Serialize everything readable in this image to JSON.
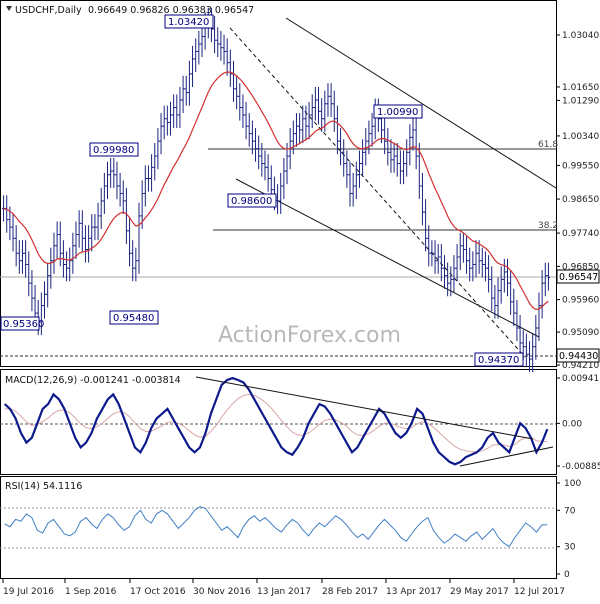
{
  "header": {
    "symbol": "USDCHF,Daily",
    "ohlc": "0.96649 0.96826 0.96383 0.96547"
  },
  "watermark": "ActionForex.com",
  "colors": {
    "price": "#1a237e",
    "ema": "#d32f2f",
    "macd": "#0d1a8c",
    "signal": "#d9a7a7",
    "rsi": "#3f7fc4",
    "trend": "#111111",
    "fib": "#333333",
    "callout_border": "#000080"
  },
  "chart_data": [
    {
      "type": "candlestick",
      "title": "USDCHF,Daily",
      "x_ticks": [
        "19 Jul 2016",
        "1 Sep 2016",
        "17 Oct 2016",
        "30 Nov 2016",
        "13 Jan 2017",
        "28 Feb 2017",
        "13 Apr 2017",
        "29 May 2017",
        "12 Jul 2017"
      ],
      "y_ticks": [
        1.0304,
        1.0165,
        1.0129,
        1.0034,
        0.9955,
        0.9865,
        0.9774,
        0.9685,
        0.9596,
        0.9509,
        0.9421
      ],
      "ylim": [
        0.9421,
        1.0365
      ],
      "last_price": 0.96547,
      "support_label": 0.9443,
      "series": [
        {
          "name": "",
          "close": [
            0.984,
            0.981,
            0.979,
            0.976,
            0.972,
            0.97,
            0.972,
            0.969,
            0.964,
            0.96,
            0.956,
            0.9536,
            0.958,
            0.961,
            0.966,
            0.97,
            0.974,
            0.977,
            0.972,
            0.969,
            0.968,
            0.97,
            0.974,
            0.977,
            0.98,
            0.976,
            0.973,
            0.976,
            0.979,
            0.979,
            0.982,
            0.986,
            0.99,
            0.993,
            0.994,
            0.993,
            0.99,
            0.988,
            0.986,
            0.978,
            0.972,
            0.968,
            0.97,
            0.982,
            0.988,
            0.992,
            0.992,
            0.995,
            0.998,
            1.002,
            1.006,
            1.008,
            1.007,
            1.009,
            1.011,
            1.009,
            1.013,
            1.016,
            1.015,
            1.02,
            1.024,
            1.026,
            1.028,
            1.03,
            1.033,
            1.0342,
            1.032,
            1.029,
            1.028,
            1.027,
            1.026,
            1.023,
            1.02,
            1.016,
            1.014,
            1.011,
            1.009,
            1.006,
            1.004,
            1.002,
            1.0,
            0.998,
            0.996,
            0.995,
            0.992,
            0.989,
            0.987,
            0.986,
            0.99,
            0.994,
            0.998,
            1.002,
            1.004,
            1.006,
            1.005,
            1.008,
            1.006,
            1.009,
            1.011,
            1.013,
            1.01,
            1.008,
            1.012,
            1.014,
            1.012,
            1.008,
            1.002,
            0.999,
            0.996,
            0.993,
            0.988,
            0.99,
            0.993,
            0.996,
            0.999,
            1.002,
            1.004,
            1.006,
            1.0099,
            1.008,
            1.005,
            1.002,
            0.999,
            0.997,
            0.998,
            0.996,
            0.994,
            0.996,
            0.999,
            1.003,
            1.005,
            0.998,
            0.99,
            0.983,
            0.976,
            0.972,
            0.972,
            0.97,
            0.971,
            0.968,
            0.966,
            0.964,
            0.965,
            0.968,
            0.971,
            0.974,
            0.973,
            0.97,
            0.968,
            0.969,
            0.972,
            0.97,
            0.969,
            0.968,
            0.965,
            0.96,
            0.958,
            0.962,
            0.965,
            0.967,
            0.964,
            0.959,
            0.956,
            0.952,
            0.948,
            0.947,
            0.945,
            0.9437,
            0.947,
            0.952,
            0.958,
            0.964,
            0.966,
            0.9655
          ]
        }
      ]
    },
    {
      "type": "line",
      "title": "MACD(12,26,9) -0.001241 -0.003814",
      "y_ticks": [
        0.009411,
        0.0,
        -0.008852
      ],
      "series": [
        {
          "name": "",
          "values": [
            0.004,
            0.003,
            0.001,
            -0.002,
            -0.004,
            -0.003,
            0.0,
            0.003,
            0.004,
            0.006,
            0.005,
            0.003,
            0.0,
            -0.003,
            -0.005,
            -0.004,
            -0.002,
            0.001,
            0.003,
            0.005,
            0.006,
            0.004,
            0.001,
            -0.002,
            -0.005,
            -0.006,
            -0.004,
            -0.001,
            0.001,
            0.002,
            0.003,
            0.001,
            -0.001,
            -0.003,
            -0.005,
            -0.006,
            -0.005,
            -0.002,
            0.002,
            0.005,
            0.008,
            0.009,
            0.0094,
            0.009,
            0.0085,
            0.007,
            0.005,
            0.003,
            0.001,
            -0.001,
            -0.003,
            -0.005,
            -0.006,
            -0.0065,
            -0.005,
            -0.003,
            0.0,
            0.002,
            0.004,
            0.0035,
            0.002,
            0.0,
            -0.002,
            -0.004,
            -0.006,
            -0.005,
            -0.003,
            -0.001,
            0.001,
            0.003,
            0.002,
            0.0,
            -0.002,
            -0.003,
            -0.002,
            0.0,
            0.003,
            0.002,
            -0.001,
            -0.004,
            -0.006,
            -0.007,
            -0.008,
            -0.0085,
            -0.008,
            -0.007,
            -0.0065,
            -0.006,
            -0.005,
            -0.003,
            -0.002,
            -0.004,
            -0.005,
            -0.006,
            -0.003,
            0.0,
            -0.001,
            -0.003,
            -0.006,
            -0.004,
            -0.0012
          ]
        },
        {
          "name": "",
          "values": [
            0.003,
            0.003,
            0.0025,
            0.0015,
            0.0003,
            -0.0004,
            -0.0003,
            0.0004,
            0.0011,
            0.0021,
            0.0027,
            0.0027,
            0.0022,
            0.0011,
            -0.0001,
            -0.0009,
            -0.0011,
            -0.0007,
            0.0,
            0.001,
            0.002,
            0.0024,
            0.0022,
            0.0014,
            0.0001,
            -0.0011,
            -0.0017,
            -0.0016,
            -0.0011,
            -0.0005,
            0.0002,
            0.0003,
            0.0,
            -0.0006,
            -0.0015,
            -0.0024,
            -0.0029,
            -0.0027,
            -0.0017,
            -0.0004,
            0.0013,
            0.0028,
            0.0041,
            0.0051,
            0.0058,
            0.006,
            0.0058,
            0.0052,
            0.0044,
            0.0033,
            0.002,
            0.0006,
            -0.0007,
            -0.0018,
            -0.0024,
            -0.0025,
            -0.002,
            -0.0012,
            -0.0002,
            0.0006,
            0.0009,
            0.0007,
            0.0002,
            -0.0006,
            -0.0017,
            -0.0024,
            -0.0025,
            -0.0022,
            -0.0015,
            -0.0006,
            0.0,
            0.0,
            -0.0004,
            -0.0009,
            -0.0011,
            -0.0009,
            -0.0001,
            0.0003,
            0.0,
            -0.0008,
            -0.0018,
            -0.0029,
            -0.0039,
            -0.0048,
            -0.0054,
            -0.0057,
            -0.0059,
            -0.0059,
            -0.0057,
            -0.0052,
            -0.0045,
            -0.0044,
            -0.0045,
            -0.0048,
            -0.0044,
            -0.0035,
            -0.003,
            -0.003,
            -0.0036,
            -0.0037,
            -0.0038
          ]
        }
      ]
    },
    {
      "type": "line",
      "title": "RSI(14) 54.1116",
      "y_ticks": [
        100,
        70,
        30,
        0
      ],
      "ylim": [
        0,
        100
      ],
      "series": [
        {
          "name": "",
          "values": [
            55,
            52,
            60,
            58,
            66,
            62,
            48,
            45,
            56,
            60,
            52,
            44,
            42,
            46,
            58,
            62,
            55,
            50,
            60,
            66,
            62,
            54,
            48,
            52,
            64,
            70,
            60,
            56,
            66,
            70,
            66,
            58,
            50,
            56,
            62,
            70,
            74,
            72,
            64,
            56,
            48,
            52,
            46,
            40,
            52,
            60,
            64,
            58,
            62,
            56,
            50,
            46,
            54,
            60,
            56,
            48,
            42,
            50,
            56,
            52,
            58,
            64,
            60,
            54,
            46,
            40,
            44,
            38,
            46,
            54,
            60,
            54,
            48,
            40,
            36,
            44,
            52,
            58,
            62,
            48,
            40,
            34,
            38,
            44,
            40,
            36,
            42,
            46,
            38,
            44,
            50,
            40,
            34,
            30,
            40,
            48,
            56,
            52,
            46,
            54,
            54
          ]
        }
      ]
    }
  ],
  "callouts": {
    "high_1": "1.03420",
    "high_2": "1.00990",
    "left_high": "0.99980",
    "mid_low": "0.98600",
    "left_low": "0.95360",
    "left_low_2": "0.95480",
    "recent_low": "0.94370"
  },
  "fib": {
    "level_1": "61.8",
    "level_2": "38.2"
  },
  "price_tags": {
    "last": "0.96547",
    "support": "0.94430"
  }
}
